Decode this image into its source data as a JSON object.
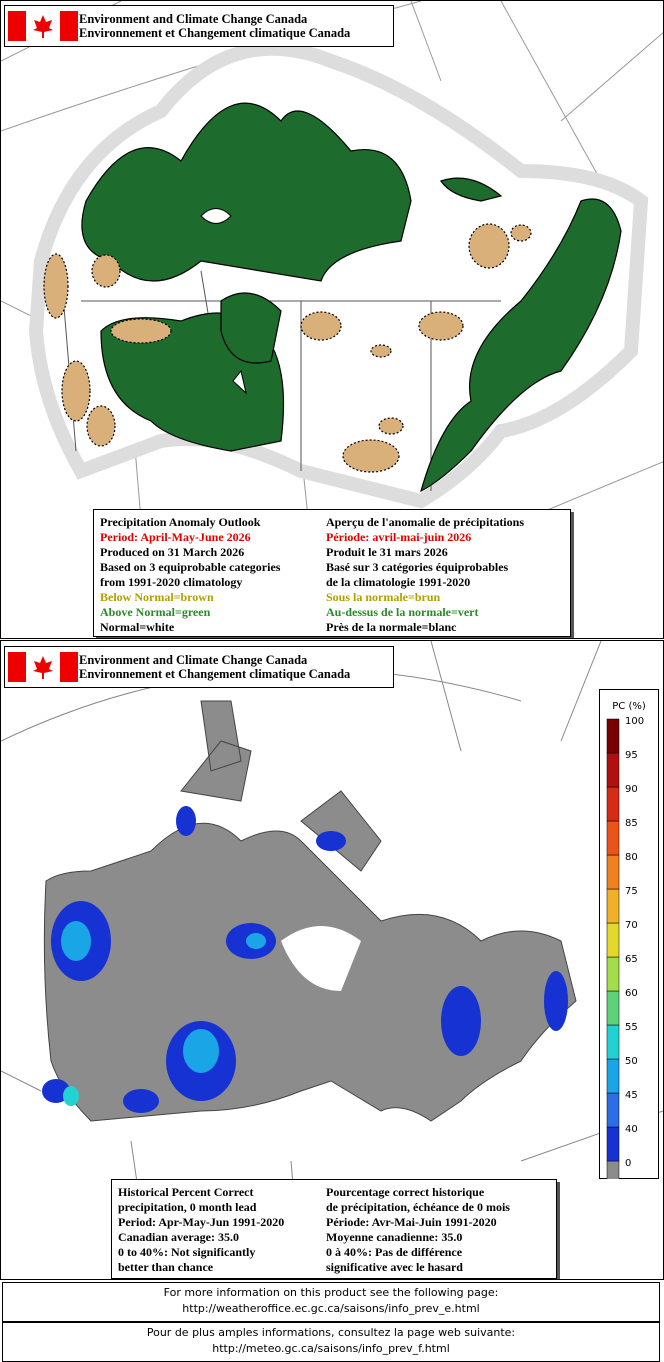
{
  "panel1": {
    "header": {
      "line1": "Environment and Climate Change Canada",
      "line2": "Environnement et Changement climatique Canada"
    },
    "legend": {
      "english": [
        "Precipitation Anomaly Outlook",
        "Period: April-May-June 2026",
        "Produced on 31 March 2026",
        "Based on 3 equiprobable categories",
        "from 1991-2020 climatology",
        "Below Normal=brown",
        "Above Normal=green",
        "Normal=white"
      ],
      "french": [
        "Aperçu de l'anomalie de précipitations",
        "Période: avril-mai-juin 2026",
        "Produit le 31 mars 2026",
        "Basé sur 3 catégories équiprobables",
        "de la climatologie 1991-2020",
        "Sous la normale=brun",
        "Au-dessus de la normale=vert",
        "Près de la normale=blanc"
      ]
    }
  },
  "panel2": {
    "header": {
      "line1": "Environment and Climate Change Canada",
      "line2": "Environnement et Changement climatique Canada"
    },
    "colorbar": {
      "label": "PC (%)",
      "ticks": [
        0,
        40,
        45,
        50,
        55,
        60,
        65,
        70,
        75,
        80,
        85,
        90,
        95,
        100
      ],
      "colors": [
        "#8c8c8c",
        "#1632d2",
        "#2c6ee6",
        "#1aa6e6",
        "#22d2d2",
        "#5ed27a",
        "#a2de4a",
        "#e4d82a",
        "#f0b028",
        "#f08020",
        "#ea5418",
        "#d82a14",
        "#b01010",
        "#780000"
      ]
    },
    "legend": {
      "english": [
        "Historical Percent Correct",
        "precipitation, 0 month lead",
        "Period: Apr-May-Jun 1991-2020",
        "Canadian average: 35.0",
        "0 to 40%: Not significantly",
        "better than chance"
      ],
      "french": [
        "Pourcentage correct historique",
        "de précipitation, échéance de 0 mois",
        "Période: Avr-Mai-Juin 1991-2020",
        "Moyenne canadienne: 35.0",
        "0 à 40%: Pas de différence",
        "significative avec le hasard"
      ]
    }
  },
  "footer": {
    "english": [
      "For more information on this product see the following page:",
      "http://weatheroffice.ec.gc.ca/saisons/info_prev_e.html"
    ],
    "french": [
      "Pour de plus amples informations, consultez la page web suivante:",
      "http://meteo.gc.ca/saisons/info_prev_f.html"
    ]
  }
}
